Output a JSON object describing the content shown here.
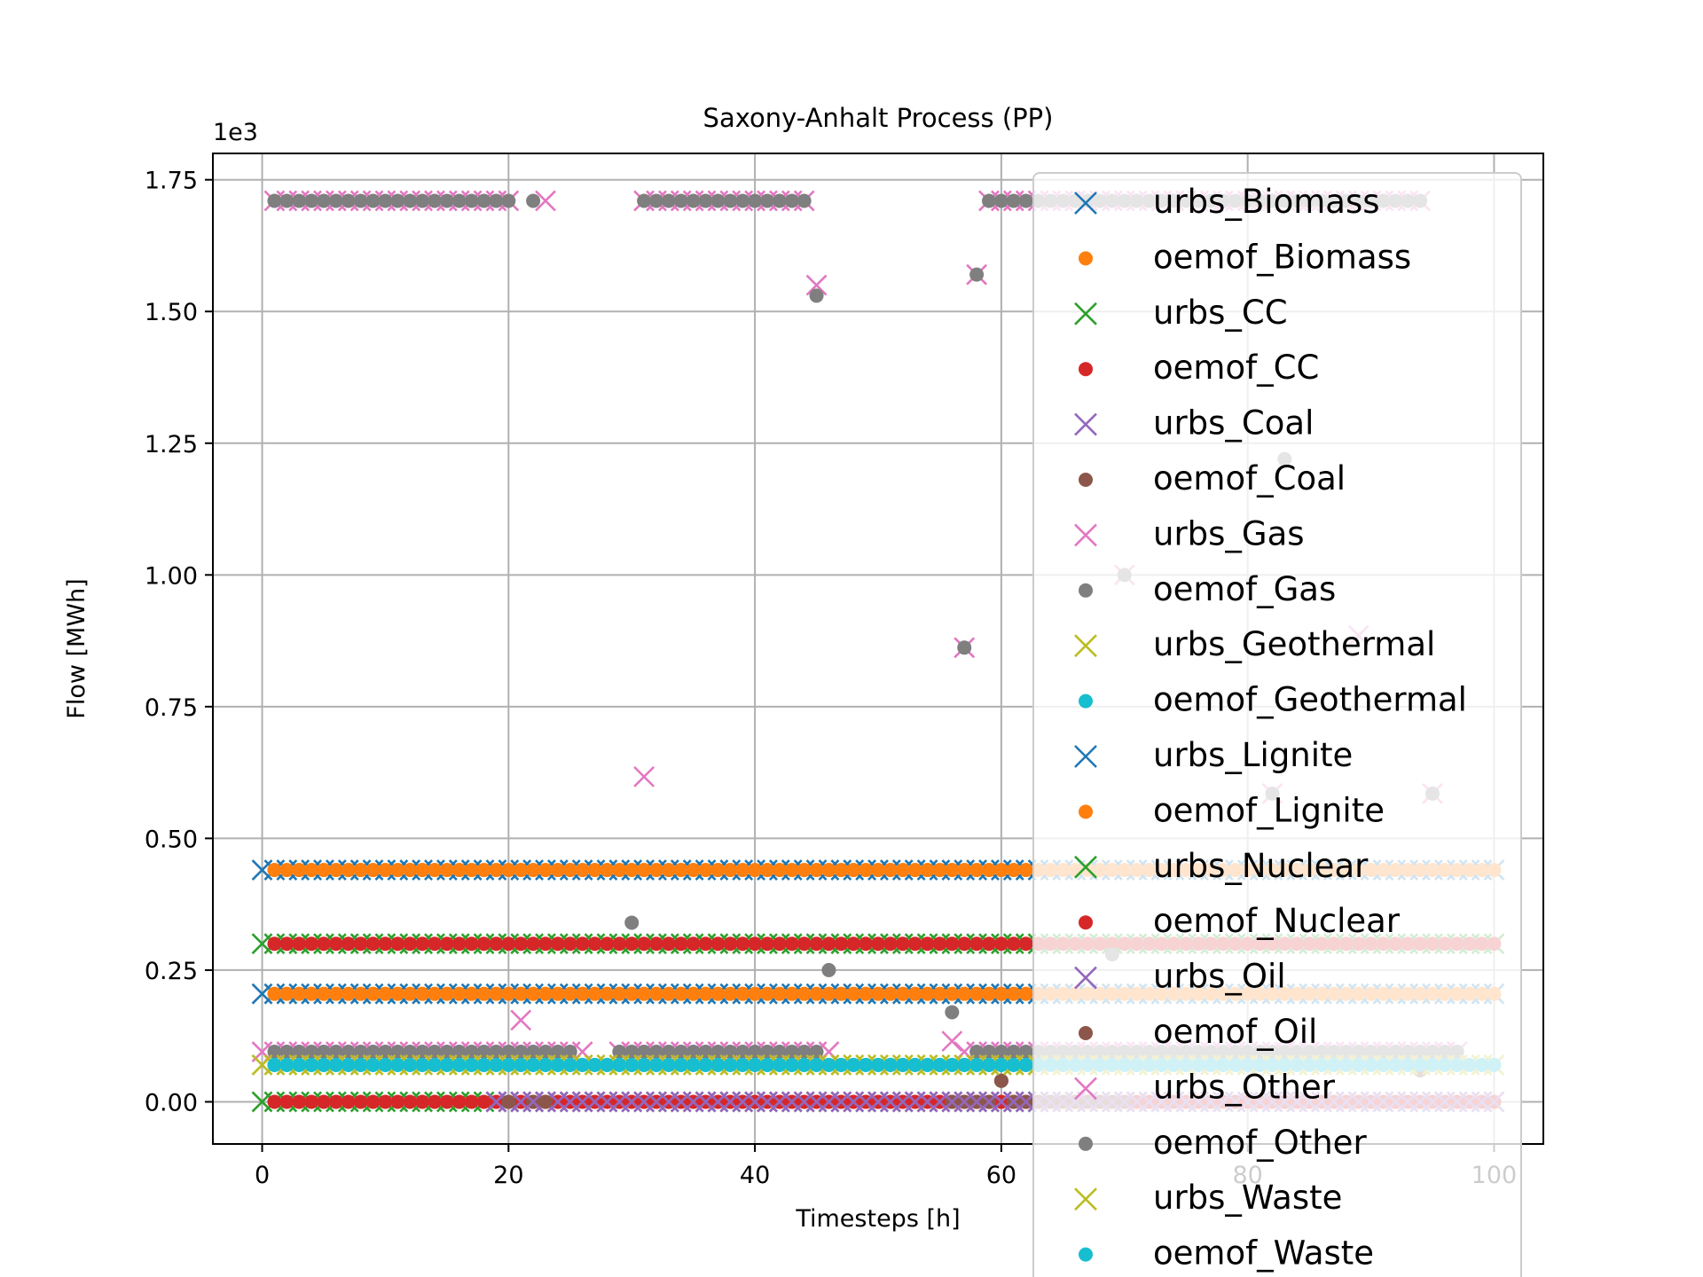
{
  "chart_data": {
    "type": "scatter",
    "title": "Saxony-Anhalt Process (PP)",
    "xlabel": "Timesteps [h]",
    "ylabel": "Flow [MWh]",
    "offset_label": "1e3",
    "xlim": [
      -4,
      104
    ],
    "ylim": [
      -0.08,
      1.8
    ],
    "xticks": [
      0,
      20,
      40,
      60,
      80,
      100
    ],
    "xtick_labels": [
      "0",
      "20",
      "40",
      "60",
      "80",
      "100"
    ],
    "yticks": [
      0,
      0.25,
      0.5,
      0.75,
      1.0,
      1.25,
      1.5,
      1.75
    ],
    "ytick_labels": [
      "0.00",
      "0.25",
      "0.50",
      "0.75",
      "1.00",
      "1.25",
      "1.50",
      "1.75"
    ],
    "grid": true,
    "legend_position": "right",
    "series": [
      {
        "name": "urbs_Biomass",
        "marker": "x",
        "color": "#1f77b4",
        "constant": 0.205,
        "x_range": [
          0,
          100
        ]
      },
      {
        "name": "oemof_Biomass",
        "marker": "o",
        "color": "#ff7f0e",
        "constant": 0.205,
        "x_range": [
          1,
          100
        ]
      },
      {
        "name": "urbs_CC",
        "marker": "x",
        "color": "#2ca02c",
        "constant": 0.0,
        "x_range": [
          0,
          100
        ]
      },
      {
        "name": "oemof_CC",
        "marker": "o",
        "color": "#d62728",
        "constant": 0.0,
        "x_range": [
          1,
          100
        ]
      },
      {
        "name": "urbs_Coal",
        "marker": "x",
        "color": "#9467bd",
        "x": [
          19,
          20,
          21,
          22,
          23,
          24,
          25,
          26,
          27,
          28,
          29,
          31,
          32,
          33,
          34,
          35,
          36,
          37,
          38,
          39,
          40,
          41,
          42,
          43,
          44,
          45,
          46,
          47,
          48,
          49,
          50,
          51,
          52,
          53,
          54,
          55,
          56,
          57,
          58,
          59,
          60,
          61,
          62,
          63,
          64,
          65,
          66,
          67,
          68,
          69,
          70,
          71,
          72,
          73,
          74,
          75,
          76,
          77,
          78,
          79,
          80,
          81,
          82,
          83,
          84,
          85,
          86,
          87,
          88,
          89,
          90,
          91,
          92,
          93,
          94,
          95,
          96,
          97,
          98,
          99
        ],
        "y": [
          0,
          0,
          0,
          0,
          0,
          0,
          0,
          0,
          0,
          0,
          0,
          0,
          0,
          0,
          0,
          0,
          0,
          0,
          0,
          0,
          0,
          0,
          0,
          0,
          0,
          0,
          0,
          0,
          0,
          0,
          0,
          0,
          0,
          0,
          0,
          0,
          0,
          0,
          0,
          0,
          0,
          0,
          0,
          0,
          0,
          0,
          0,
          0,
          0,
          0,
          0,
          0,
          0,
          0,
          0,
          0,
          0,
          0,
          0,
          0,
          0,
          0,
          0,
          0,
          0,
          0,
          0,
          0,
          0,
          0,
          0,
          0,
          0,
          0,
          0,
          0,
          0,
          0,
          0,
          0
        ]
      },
      {
        "name": "oemof_Coal",
        "marker": "o",
        "color": "#8c564b",
        "x": [
          20,
          22,
          23,
          56,
          57,
          58,
          59,
          60,
          61,
          62,
          63,
          64,
          65,
          66,
          67,
          68,
          69,
          70,
          94
        ],
        "y": [
          0,
          0,
          0,
          0,
          0,
          0,
          0,
          0.04,
          0,
          0,
          0,
          0,
          0,
          0,
          0,
          0,
          0,
          0,
          0.06
        ]
      },
      {
        "name": "urbs_Gas",
        "marker": "x",
        "color": "#e377c2",
        "x": [
          1,
          2,
          3,
          4,
          5,
          6,
          7,
          8,
          9,
          10,
          11,
          12,
          13,
          14,
          15,
          16,
          17,
          18,
          19,
          20,
          23,
          31,
          32,
          33,
          34,
          35,
          36,
          37,
          38,
          39,
          40,
          41,
          42,
          43,
          44,
          45,
          58,
          59,
          60,
          61,
          62,
          63,
          64,
          65,
          66,
          67,
          68,
          69,
          70,
          71,
          72,
          73,
          74,
          75,
          76,
          77,
          78,
          79,
          80,
          81,
          82,
          83,
          84,
          85,
          86,
          87,
          88,
          89,
          90,
          91,
          92,
          93,
          94,
          31,
          57,
          30,
          21,
          56,
          95,
          82,
          70,
          89
        ],
        "y": [
          1.71,
          1.71,
          1.71,
          1.71,
          1.71,
          1.71,
          1.71,
          1.71,
          1.71,
          1.71,
          1.71,
          1.71,
          1.71,
          1.71,
          1.71,
          1.71,
          1.71,
          1.71,
          1.71,
          1.71,
          1.71,
          1.71,
          1.71,
          1.71,
          1.71,
          1.71,
          1.71,
          1.71,
          1.71,
          1.71,
          1.71,
          1.71,
          1.71,
          1.71,
          1.71,
          1.55,
          1.57,
          1.71,
          1.71,
          1.71,
          1.71,
          1.71,
          1.71,
          1.71,
          1.71,
          1.71,
          1.71,
          1.71,
          1.71,
          1.71,
          1.71,
          1.71,
          1.71,
          1.71,
          1.71,
          1.71,
          1.71,
          1.71,
          1.71,
          1.71,
          1.71,
          1.71,
          1.71,
          1.71,
          1.71,
          1.71,
          1.71,
          1.71,
          1.71,
          1.71,
          1.71,
          1.71,
          1.71,
          0.617,
          0.862,
          0.0,
          0.155,
          0.115,
          0.585,
          0.585,
          1.0,
          0.885
        ]
      },
      {
        "name": "oemof_Gas",
        "marker": "o",
        "color": "#7f7f7f",
        "x": [
          1,
          2,
          3,
          4,
          5,
          6,
          7,
          8,
          9,
          10,
          11,
          12,
          13,
          14,
          15,
          16,
          17,
          18,
          19,
          20,
          22,
          31,
          32,
          33,
          34,
          35,
          36,
          37,
          38,
          39,
          40,
          41,
          42,
          43,
          44,
          45,
          58,
          59,
          60,
          61,
          62,
          63,
          64,
          65,
          66,
          67,
          68,
          69,
          70,
          71,
          72,
          73,
          74,
          75,
          76,
          77,
          78,
          79,
          80,
          81,
          82,
          83,
          84,
          85,
          86,
          87,
          88,
          89,
          90,
          91,
          92,
          93,
          94,
          57,
          30,
          46,
          56,
          83,
          95,
          82,
          70
        ],
        "y": [
          1.71,
          1.71,
          1.71,
          1.71,
          1.71,
          1.71,
          1.71,
          1.71,
          1.71,
          1.71,
          1.71,
          1.71,
          1.71,
          1.71,
          1.71,
          1.71,
          1.71,
          1.71,
          1.71,
          1.71,
          1.71,
          1.71,
          1.71,
          1.71,
          1.71,
          1.71,
          1.71,
          1.71,
          1.71,
          1.71,
          1.71,
          1.71,
          1.71,
          1.71,
          1.71,
          1.53,
          1.57,
          1.71,
          1.71,
          1.71,
          1.71,
          1.71,
          1.71,
          1.71,
          1.71,
          1.71,
          1.71,
          1.71,
          1.71,
          1.71,
          1.71,
          1.71,
          1.71,
          1.71,
          1.71,
          1.71,
          1.71,
          1.71,
          1.71,
          1.71,
          1.71,
          1.71,
          1.71,
          1.71,
          1.71,
          1.71,
          1.71,
          1.71,
          1.71,
          1.71,
          1.71,
          1.71,
          1.71,
          0.862,
          0.34,
          0.25,
          0.17,
          1.22,
          0.585,
          0.585,
          1.0
        ]
      },
      {
        "name": "urbs_Geothermal",
        "marker": "x",
        "color": "#bcbd22",
        "constant": 0.07,
        "x_range": [
          0,
          100
        ]
      },
      {
        "name": "oemof_Geothermal",
        "marker": "o",
        "color": "#17becf",
        "constant": 0.07,
        "x_range": [
          1,
          100
        ]
      },
      {
        "name": "urbs_Lignite",
        "marker": "x",
        "color": "#1f77b4",
        "constant": 0.44,
        "x_range": [
          0,
          100
        ]
      },
      {
        "name": "oemof_Lignite",
        "marker": "o",
        "color": "#ff7f0e",
        "constant": 0.44,
        "x_range": [
          1,
          100
        ]
      },
      {
        "name": "urbs_Nuclear",
        "marker": "x",
        "color": "#2ca02c",
        "constant": 0.3,
        "x_range": [
          0,
          100
        ]
      },
      {
        "name": "oemof_Nuclear",
        "marker": "o",
        "color": "#d62728",
        "constant": 0.3,
        "x_range": [
          1,
          100
        ]
      },
      {
        "name": "urbs_Oil",
        "marker": "x",
        "color": "#9467bd",
        "constant": 0.0,
        "x_range": [
          19,
          100
        ]
      },
      {
        "name": "oemof_Oil",
        "marker": "o",
        "color": "#8c564b",
        "x": [
          20,
          23,
          60,
          94
        ],
        "y": [
          0,
          0,
          0.04,
          0.06
        ]
      },
      {
        "name": "urbs_Other",
        "marker": "x",
        "color": "#e377c2",
        "x": [
          0,
          1,
          2,
          3,
          4,
          5,
          6,
          7,
          8,
          9,
          10,
          11,
          12,
          13,
          14,
          15,
          16,
          17,
          18,
          19,
          20,
          21,
          22,
          23,
          24,
          25,
          26,
          29,
          30,
          31,
          32,
          33,
          34,
          35,
          36,
          37,
          38,
          39,
          40,
          41,
          42,
          43,
          44,
          45,
          46,
          57,
          58,
          59,
          60,
          61,
          62,
          63,
          64,
          65,
          66,
          67,
          68,
          69,
          70,
          71,
          72,
          73,
          74,
          75,
          76,
          77,
          78,
          79,
          80,
          81,
          82,
          83,
          84,
          85,
          86,
          87,
          88,
          89,
          90,
          91,
          92,
          93,
          94,
          95,
          96,
          97
        ],
        "y": [
          0.095,
          0.095,
          0.095,
          0.095,
          0.095,
          0.095,
          0.095,
          0.095,
          0.095,
          0.095,
          0.095,
          0.095,
          0.095,
          0.095,
          0.095,
          0.095,
          0.095,
          0.095,
          0.095,
          0.095,
          0.095,
          0.095,
          0.095,
          0.095,
          0.095,
          0.095,
          0.095,
          0.095,
          0.095,
          0.095,
          0.095,
          0.095,
          0.095,
          0.095,
          0.095,
          0.095,
          0.095,
          0.095,
          0.095,
          0.095,
          0.095,
          0.095,
          0.095,
          0.095,
          0.095,
          0.095,
          0.095,
          0.095,
          0.095,
          0.095,
          0.095,
          0.095,
          0.095,
          0.095,
          0.095,
          0.095,
          0.095,
          0.095,
          0.095,
          0.095,
          0.095,
          0.095,
          0.095,
          0.095,
          0.095,
          0.095,
          0.095,
          0.095,
          0.095,
          0.095,
          0.095,
          0.095,
          0.095,
          0.095,
          0.095,
          0.095,
          0.095,
          0.095,
          0.095,
          0.095,
          0.095,
          0.095,
          0.095,
          0.095,
          0.095,
          0.095
        ]
      },
      {
        "name": "oemof_Other",
        "marker": "o",
        "color": "#7f7f7f",
        "x": [
          1,
          2,
          3,
          4,
          5,
          6,
          7,
          8,
          9,
          10,
          11,
          12,
          13,
          14,
          15,
          16,
          17,
          18,
          19,
          20,
          21,
          22,
          23,
          24,
          25,
          29,
          30,
          31,
          32,
          33,
          34,
          35,
          36,
          37,
          38,
          39,
          40,
          41,
          42,
          43,
          44,
          45,
          58,
          59,
          60,
          61,
          62,
          63,
          64,
          65,
          66,
          67,
          68,
          69,
          70,
          71,
          72,
          73,
          74,
          75,
          76,
          77,
          78,
          79,
          80,
          81,
          82,
          83,
          84,
          85,
          86,
          87,
          88,
          89,
          90,
          91,
          92,
          93,
          94,
          95,
          96,
          97,
          69
        ],
        "y": [
          0.095,
          0.095,
          0.095,
          0.095,
          0.095,
          0.095,
          0.095,
          0.095,
          0.095,
          0.095,
          0.095,
          0.095,
          0.095,
          0.095,
          0.095,
          0.095,
          0.095,
          0.095,
          0.095,
          0.095,
          0.095,
          0.095,
          0.095,
          0.095,
          0.095,
          0.095,
          0.095,
          0.095,
          0.095,
          0.095,
          0.095,
          0.095,
          0.095,
          0.095,
          0.095,
          0.095,
          0.095,
          0.095,
          0.095,
          0.095,
          0.095,
          0.095,
          0.095,
          0.095,
          0.095,
          0.095,
          0.095,
          0.095,
          0.095,
          0.095,
          0.095,
          0.095,
          0.095,
          0.095,
          0.095,
          0.095,
          0.095,
          0.095,
          0.095,
          0.095,
          0.095,
          0.095,
          0.095,
          0.095,
          0.095,
          0.095,
          0.095,
          0.095,
          0.095,
          0.095,
          0.095,
          0.095,
          0.095,
          0.095,
          0.095,
          0.095,
          0.095,
          0.095,
          0.095,
          0.095,
          0.095,
          0.095,
          0.28
        ]
      },
      {
        "name": "urbs_Waste",
        "marker": "x",
        "color": "#bcbd22",
        "constant": 0.07,
        "x_range": [
          0,
          100
        ]
      },
      {
        "name": "oemof_Waste",
        "marker": "o",
        "color": "#17becf",
        "constant": 0.07,
        "x_range": [
          1,
          100
        ]
      }
    ]
  }
}
